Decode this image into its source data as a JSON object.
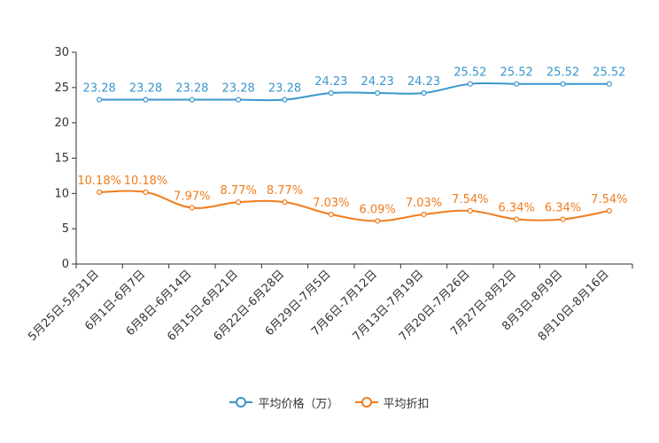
{
  "chart_data": {
    "type": "line",
    "categories": [
      "5月25日-5月31日",
      "6月1日-6月7日",
      "6月8日-6月14日",
      "6月15日-6月21日",
      "6月22日-6月28日",
      "6月29日-7月5日",
      "7月6日-7月12日",
      "7月13日-7月19日",
      "7月20日-7月26日",
      "7月27日-8月2日",
      "8月3日-8月9日",
      "8月10日-8月16日"
    ],
    "series": [
      {
        "name": "平均价格（万）",
        "color": "#3a96cc",
        "values": [
          23.28,
          23.28,
          23.28,
          23.28,
          23.28,
          24.23,
          24.23,
          24.23,
          25.52,
          25.52,
          25.52,
          25.52
        ],
        "labels": [
          "23.28",
          "23.28",
          "23.28",
          "23.28",
          "23.28",
          "24.23",
          "24.23",
          "24.23",
          "25.52",
          "25.52",
          "25.52",
          "25.52"
        ]
      },
      {
        "name": "平均折扣",
        "color": "#f07c1d",
        "values": [
          10.18,
          10.18,
          7.97,
          8.77,
          8.77,
          7.03,
          6.09,
          7.03,
          7.54,
          6.34,
          6.34,
          7.54
        ],
        "labels": [
          "10.18%",
          "10.18%",
          "7.97%",
          "8.77%",
          "8.77%",
          "7.03%",
          "6.09%",
          "7.03%",
          "7.54%",
          "6.34%",
          "6.34%",
          "7.54%"
        ]
      }
    ],
    "ylim": [
      0,
      30
    ],
    "yticks": [
      0,
      5,
      10,
      15,
      20,
      25,
      30
    ],
    "title": "",
    "xlabel": "",
    "ylabel": "",
    "legend_position": "bottom-center",
    "grid": false
  }
}
